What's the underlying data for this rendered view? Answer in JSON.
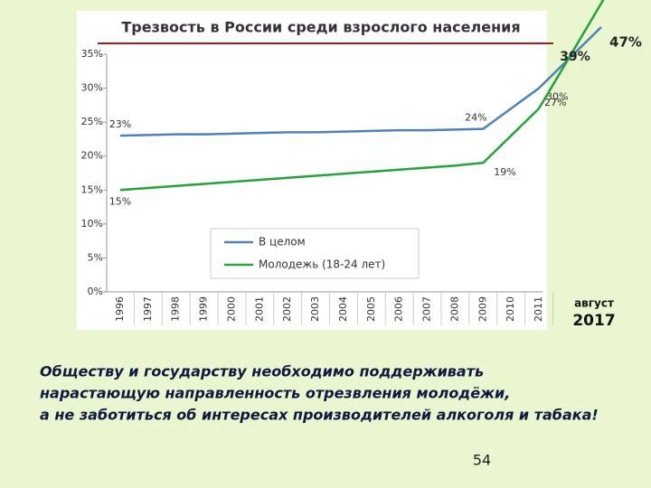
{
  "chart_data": {
    "type": "line",
    "title": "Трезвость в России среди взрослого населения",
    "categories": [
      "1996",
      "1997",
      "1998",
      "1999",
      "2000",
      "2001",
      "2002",
      "2003",
      "2004",
      "2005",
      "2006",
      "2007",
      "2008",
      "2009",
      "2010",
      "2011"
    ],
    "series": [
      {
        "name": "В целом",
        "color": "#4f81bd",
        "values": [
          23,
          23.1,
          23.2,
          23.2,
          23.3,
          23.4,
          23.5,
          23.5,
          23.6,
          23.7,
          23.8,
          23.8,
          23.9,
          24,
          27,
          30
        ],
        "value_labels": [
          "23%",
          null,
          null,
          null,
          null,
          null,
          null,
          null,
          null,
          null,
          null,
          null,
          null,
          "24%",
          null,
          "30%"
        ]
      },
      {
        "name": "Молодежь (18-24 лет)",
        "color": "#23a33a",
        "values": [
          15,
          15.3,
          15.6,
          15.9,
          16.2,
          16.5,
          16.8,
          17.1,
          17.4,
          17.7,
          18,
          18.3,
          18.6,
          19,
          23,
          27
        ],
        "value_labels": [
          "15%",
          null,
          null,
          null,
          null,
          null,
          null,
          null,
          null,
          null,
          null,
          null,
          null,
          "19%",
          null,
          "27%"
        ]
      }
    ],
    "forecast": {
      "labels": [
        "август",
        "2017"
      ],
      "values": [
        39,
        47
      ],
      "value_labels": [
        "39%",
        "47%"
      ]
    },
    "ylim": [
      0,
      35
    ],
    "yticks": [
      {
        "value": 0,
        "label": "0%"
      },
      {
        "value": 5,
        "label": "5%"
      },
      {
        "value": 10,
        "label": "10%"
      },
      {
        "value": 15,
        "label": "15%"
      },
      {
        "value": 20,
        "label": "20%"
      },
      {
        "value": 25,
        "label": "25%"
      },
      {
        "value": 30,
        "label": "30%"
      },
      {
        "value": 35,
        "label": "35%"
      }
    ],
    "grid": false,
    "legend": "lower-left"
  },
  "body": {
    "lines": [
      "Обществу и государству необходимо поддерживать",
      "нарастающую направленность отрезвления молодёжи,",
      "а не заботиться об интересах производителей алкоголя и табака!"
    ],
    "page_number": "54"
  }
}
